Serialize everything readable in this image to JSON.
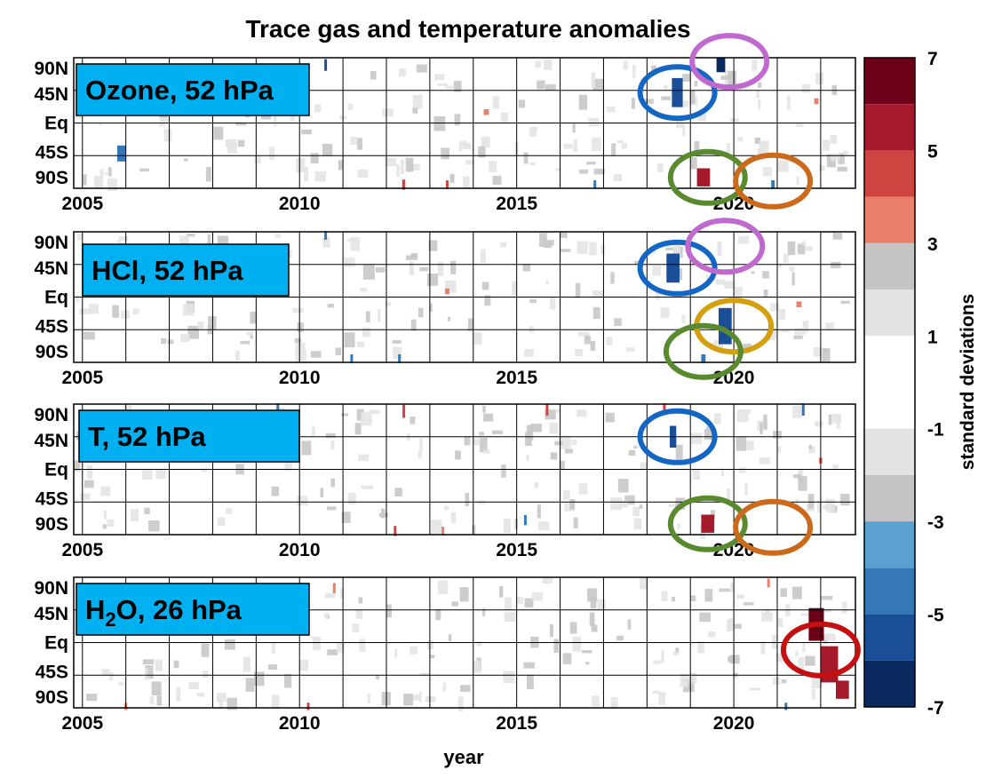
{
  "chart_data": {
    "type": "heatmap",
    "title": "Trace gas and temperature anomalies",
    "xlabel": "year",
    "xlim": [
      2004.8,
      2022.8
    ],
    "x_ticks": [
      2005,
      2010,
      2015,
      2020
    ],
    "y_ticks": [
      "90N",
      "45N",
      "Eq",
      "45S",
      "90S"
    ],
    "grid": true,
    "colorbar": {
      "label": "standard deviations",
      "range": [
        -7,
        7
      ],
      "tick_labels": [
        "7",
        "5",
        "3",
        "1",
        "-1",
        "-3",
        "-5",
        "-7"
      ],
      "levels": [
        {
          "from": 6,
          "to": 7,
          "color": "#6b0018"
        },
        {
          "from": 5,
          "to": 6,
          "color": "#a41a2a"
        },
        {
          "from": 4,
          "to": 5,
          "color": "#cc4540"
        },
        {
          "from": 3,
          "to": 4,
          "color": "#e8806a"
        },
        {
          "from": 2,
          "to": 3,
          "color": "#c4c4c4"
        },
        {
          "from": 1,
          "to": 2,
          "color": "#e2e2e2"
        },
        {
          "from": -1,
          "to": 1,
          "color": "#ffffff"
        },
        {
          "from": -2,
          "to": -1,
          "color": "#e2e2e2"
        },
        {
          "from": -3,
          "to": -2,
          "color": "#c4c4c4"
        },
        {
          "from": -4,
          "to": -3,
          "color": "#5aa0d0"
        },
        {
          "from": -5,
          "to": -4,
          "color": "#3578b8"
        },
        {
          "from": -6,
          "to": -5,
          "color": "#1a4e96"
        },
        {
          "from": -7,
          "to": -6,
          "color": "#0a2a60"
        }
      ]
    },
    "panels": [
      {
        "label": "Ozone, 52 hPa",
        "anomalies": [
          {
            "x": 2010.6,
            "y": 80,
            "w": 0.06,
            "h": 16,
            "v": -5
          },
          {
            "x": 2005.9,
            "y": -42,
            "w": 0.2,
            "h": 22,
            "v": -4.5
          },
          {
            "x": 2012.4,
            "y": -85,
            "w": 0.07,
            "h": 14,
            "v": 5
          },
          {
            "x": 2013.4,
            "y": -85,
            "w": 0.06,
            "h": 12,
            "v": 4.5
          },
          {
            "x": 2016.8,
            "y": -85,
            "w": 0.06,
            "h": 12,
            "v": -4
          },
          {
            "x": 2018.7,
            "y": 42,
            "w": 0.25,
            "h": 40,
            "v": -5
          },
          {
            "x": 2019.7,
            "y": 80,
            "w": 0.2,
            "h": 20,
            "v": -6
          },
          {
            "x": 2019.3,
            "y": -75,
            "w": 0.3,
            "h": 25,
            "v": 5.5
          },
          {
            "x": 2020.9,
            "y": -85,
            "w": 0.08,
            "h": 12,
            "v": -4
          },
          {
            "x": 2014.3,
            "y": 15,
            "w": 0.12,
            "h": 8,
            "v": 4
          },
          {
            "x": 2021.9,
            "y": 30,
            "w": 0.1,
            "h": 8,
            "v": 4
          }
        ],
        "markers": [
          {
            "x": 2018.7,
            "y": 42,
            "color": "#1466c4"
          },
          {
            "x": 2019.9,
            "y": 85,
            "color": "#c06ad0"
          },
          {
            "x": 2019.4,
            "y": -75,
            "color": "#5a8a30"
          },
          {
            "x": 2020.9,
            "y": -80,
            "color": "#cc6a1c"
          }
        ]
      },
      {
        "label": "HCl, 52 hPa",
        "anomalies": [
          {
            "x": 2010.6,
            "y": 85,
            "w": 0.06,
            "h": 12,
            "v": -4
          },
          {
            "x": 2011.2,
            "y": -85,
            "w": 0.06,
            "h": 12,
            "v": -4.5
          },
          {
            "x": 2012.3,
            "y": -85,
            "w": 0.06,
            "h": 12,
            "v": -4
          },
          {
            "x": 2018.6,
            "y": 40,
            "w": 0.3,
            "h": 40,
            "v": -5
          },
          {
            "x": 2019.8,
            "y": -40,
            "w": 0.3,
            "h": 50,
            "v": -5
          },
          {
            "x": 2019.3,
            "y": -85,
            "w": 0.1,
            "h": 12,
            "v": -4
          },
          {
            "x": 2013.4,
            "y": 8,
            "w": 0.1,
            "h": 8,
            "v": 4
          },
          {
            "x": 2021.5,
            "y": -10,
            "w": 0.12,
            "h": 8,
            "v": 4
          }
        ],
        "markers": [
          {
            "x": 2018.7,
            "y": 40,
            "color": "#1466c4"
          },
          {
            "x": 2019.8,
            "y": 70,
            "color": "#c06ad0"
          },
          {
            "x": 2020.0,
            "y": -40,
            "color": "#d4a010"
          },
          {
            "x": 2019.3,
            "y": -75,
            "color": "#5a8a30"
          }
        ]
      },
      {
        "label": "T, 52 hPa",
        "anomalies": [
          {
            "x": 2009.5,
            "y": 85,
            "w": 0.06,
            "h": 12,
            "v": -4
          },
          {
            "x": 2012.4,
            "y": 80,
            "w": 0.06,
            "h": 18,
            "v": 5
          },
          {
            "x": 2015.7,
            "y": 82,
            "w": 0.06,
            "h": 16,
            "v": 5
          },
          {
            "x": 2018.6,
            "y": 45,
            "w": 0.15,
            "h": 30,
            "v": -5
          },
          {
            "x": 2019.4,
            "y": -75,
            "w": 0.3,
            "h": 25,
            "v": 6
          },
          {
            "x": 2018.4,
            "y": 85,
            "w": 0.06,
            "h": 12,
            "v": 5
          },
          {
            "x": 2012.2,
            "y": -85,
            "w": 0.06,
            "h": 14,
            "v": 4.5
          },
          {
            "x": 2015.2,
            "y": -70,
            "w": 0.06,
            "h": 14,
            "v": -4
          },
          {
            "x": 2021.6,
            "y": 82,
            "w": 0.06,
            "h": 16,
            "v": -4.5
          },
          {
            "x": 2022.0,
            "y": 12,
            "w": 0.08,
            "h": 8,
            "v": 4
          },
          {
            "x": 2013.3,
            "y": -85,
            "w": 0.06,
            "h": 12,
            "v": 4
          }
        ],
        "markers": [
          {
            "x": 2018.7,
            "y": 45,
            "color": "#1466c4"
          },
          {
            "x": 2019.4,
            "y": -75,
            "color": "#5a8a30"
          },
          {
            "x": 2020.9,
            "y": -80,
            "color": "#cc6a1c"
          }
        ]
      },
      {
        "label": "H₂O, 26 hPa",
        "label_main": "H",
        "label_sub": "2",
        "label_rest": "O, 26 hPa",
        "anomalies": [
          {
            "x": 2010.8,
            "y": 75,
            "w": 0.06,
            "h": 14,
            "v": 4
          },
          {
            "x": 2006.0,
            "y": -88,
            "w": 0.06,
            "h": 10,
            "v": 4
          },
          {
            "x": 2010.2,
            "y": -88,
            "w": 0.06,
            "h": 10,
            "v": 4.5
          },
          {
            "x": 2020.8,
            "y": 82,
            "w": 0.06,
            "h": 12,
            "v": 4
          },
          {
            "x": 2021.2,
            "y": -88,
            "w": 0.06,
            "h": 10,
            "v": -4
          },
          {
            "x": 2021.9,
            "y": 25,
            "w": 0.35,
            "h": 45,
            "v": 6.5
          },
          {
            "x": 2022.2,
            "y": -30,
            "w": 0.4,
            "h": 50,
            "v": 6
          },
          {
            "x": 2022.5,
            "y": -65,
            "w": 0.3,
            "h": 25,
            "v": 5.5
          }
        ],
        "markers": [
          {
            "x": 2022.0,
            "y": -10,
            "color": "#c41010"
          }
        ]
      }
    ]
  }
}
